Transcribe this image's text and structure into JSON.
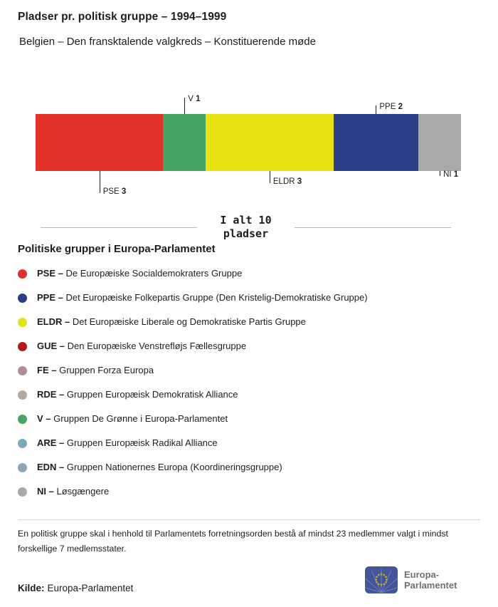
{
  "header": {
    "title": "Pladser pr. politisk gruppe – 1994–1999",
    "subtitle": "Belgien – Den fransktalende valgkreds – Konstituerende møde"
  },
  "chart_data": {
    "type": "bar",
    "variant": "horizontal-stacked",
    "title": "Pladser pr. politisk gruppe – 1994–1999",
    "total_seats": 10,
    "total_line1": "I alt 10",
    "total_line2": "pladser",
    "segments": [
      {
        "group": "PSE",
        "seats": 3,
        "color": "#e23128",
        "label_side": "below",
        "label_tier": 2
      },
      {
        "group": "V",
        "seats": 1,
        "color": "#45a45f",
        "label_side": "above",
        "label_tier": 2
      },
      {
        "group": "ELDR",
        "seats": 3,
        "color": "#e7e112",
        "label_side": "below",
        "label_tier": 1
      },
      {
        "group": "PPE",
        "seats": 2,
        "color": "#2a3f87",
        "label_side": "above",
        "label_tier": 1
      },
      {
        "group": "NI",
        "seats": 1,
        "color": "#a9a9a9",
        "label_side": "below",
        "label_tier": 0
      }
    ]
  },
  "legend": {
    "title": "Politiske grupper i Europa-Parlamentet",
    "items": [
      {
        "abbr": "PSE",
        "name": "De Europæiske Socialdemokraters Gruppe",
        "color": "#e23128"
      },
      {
        "abbr": "PPE",
        "name": "Det Europæiske Folkepartis Gruppe (Den Kristelig-Demokratiske Gruppe)",
        "color": "#2a3f87"
      },
      {
        "abbr": "ELDR",
        "name": "Det Europæiske Liberale og Demokratiske Partis Gruppe",
        "color": "#e7e112"
      },
      {
        "abbr": "GUE",
        "name": "Den Europæiske Venstrefløjs Fællesgruppe",
        "color": "#b01c17"
      },
      {
        "abbr": "FE",
        "name": "Gruppen Forza Europa",
        "color": "#b18e93"
      },
      {
        "abbr": "RDE",
        "name": "Gruppen Europæisk Demokratisk Alliance",
        "color": "#b3a9a1"
      },
      {
        "abbr": "V",
        "name": "Gruppen De Grønne i Europa-Parlamentet",
        "color": "#45a45f"
      },
      {
        "abbr": "ARE",
        "name": "Gruppen Europæisk Radikal Alliance",
        "color": "#7da6c0"
      },
      {
        "abbr": "EDN",
        "name": "Gruppen Nationernes Europa (Koordineringsgruppe)",
        "color": "#87a9be"
      },
      {
        "abbr": "NI",
        "name": "Løsgængere",
        "color": "#a9a9a9"
      }
    ]
  },
  "footer": {
    "note": "En politisk gruppe skal i henhold til Parlamentets forretningsorden bestå af mindst 23 medlemmer valgt i mindst forskellige 7 medlemsstater.",
    "source_label": "Kilde:",
    "source_value": "Europa-Parlamentet",
    "logo_line1": "Europa-",
    "logo_line2": "Parlamentet"
  }
}
